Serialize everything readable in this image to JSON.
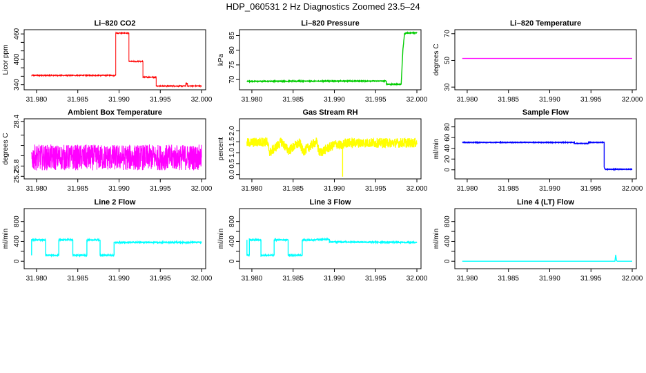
{
  "page": {
    "title": "HDP_060531  2 Hz Diagnostics Zoomed 23.5–24"
  },
  "chart_data": [
    {
      "type": "line",
      "title": "Li–820 CO2",
      "ylabel": "Licor ppm",
      "color": "#ff0000",
      "xlim": [
        31.9785,
        32.0005
      ],
      "ylim": [
        328,
        470
      ],
      "xticks": [
        31.98,
        31.985,
        31.99,
        31.995,
        32.0
      ],
      "xticklabels": [
        "31.980",
        "31.985",
        "31.990",
        "31.995",
        "32.000"
      ],
      "yticks": [
        340,
        360,
        380,
        400,
        420,
        440,
        460
      ],
      "yticklabels": [
        "340",
        "",
        "",
        "400",
        "",
        "",
        "460"
      ],
      "noise": 1.2,
      "series": [
        {
          "name": "CO2",
          "x": [
            31.9794,
            31.9896,
            31.9896,
            31.9912,
            31.9912,
            31.9929,
            31.9929,
            31.9945,
            31.9945,
            31.9981,
            31.9981,
            31.9983,
            31.9983,
            32.0
          ],
          "values": [
            362,
            362,
            462,
            462,
            395,
            395,
            358,
            358,
            337,
            337,
            343,
            343,
            337,
            337
          ]
        }
      ]
    },
    {
      "type": "line",
      "title": "Li–820 Pressure",
      "ylabel": "kPa",
      "color": "#00cc00",
      "xlim": [
        31.9785,
        32.0005
      ],
      "ylim": [
        66.5,
        87
      ],
      "xticks": [
        31.98,
        31.985,
        31.99,
        31.995,
        32.0
      ],
      "xticklabels": [
        "31.980",
        "31.985",
        "31.990",
        "31.995",
        "32.000"
      ],
      "yticks": [
        70,
        75,
        80,
        85
      ],
      "yticklabels": [
        "70",
        "75",
        "80",
        "85"
      ],
      "noise": 0.12,
      "series": [
        {
          "name": "Pressure",
          "x": [
            31.9794,
            31.9963,
            31.9963,
            31.9981,
            31.9983,
            31.9985,
            31.9987,
            32.0
          ],
          "values": [
            69.4,
            69.5,
            68.4,
            68.4,
            80,
            85.6,
            85.9,
            85.9
          ]
        }
      ]
    },
    {
      "type": "line",
      "title": "Li–820 Temperature",
      "ylabel": "degrees C",
      "color": "#ff00ff",
      "xlim": [
        31.9785,
        32.0005
      ],
      "ylim": [
        28,
        73
      ],
      "xticks": [
        31.98,
        31.985,
        31.99,
        31.995,
        32.0
      ],
      "xticklabels": [
        "31.980",
        "31.985",
        "31.990",
        "31.995",
        "32.000"
      ],
      "yticks": [
        30,
        50,
        70
      ],
      "yticklabels": [
        "30",
        "50",
        "70"
      ],
      "noise": 0,
      "series": [
        {
          "name": "Temperature",
          "x": [
            31.9794,
            32.0
          ],
          "values": [
            51.5,
            51.5
          ]
        }
      ]
    },
    {
      "type": "line",
      "title": "Ambient Box Temperature",
      "ylabel": "degrees C",
      "color": "#ff00ff",
      "xlim": [
        31.9785,
        32.0005
      ],
      "ylim": [
        25.05,
        28.55
      ],
      "xticks": [
        31.98,
        31.985,
        31.99,
        31.995,
        32.0
      ],
      "xticklabels": [
        "31.980",
        "31.985",
        "31.990",
        "31.995",
        "32.000"
      ],
      "yticks": [
        25.2,
        25.8,
        26.4,
        27.0,
        27.6,
        28.4
      ],
      "yticklabels": [
        "25.2",
        "25.8",
        "",
        "",
        "",
        "28.4"
      ],
      "noise": 0.75,
      "series": [
        {
          "name": "Box Temperature",
          "x": [
            31.9794,
            32.0
          ],
          "values": [
            26.3,
            26.3
          ]
        }
      ]
    },
    {
      "type": "line",
      "title": "Gas Stream RH",
      "ylabel": "percent",
      "color": "#ffff00",
      "xlim": [
        31.9785,
        32.0005
      ],
      "ylim": [
        -0.2,
        2.55
      ],
      "xticks": [
        31.98,
        31.985,
        31.99,
        31.995,
        32.0
      ],
      "xticklabels": [
        "31.980",
        "31.985",
        "31.990",
        "31.995",
        "32.000"
      ],
      "yticks": [
        0.0,
        0.5,
        1.0,
        1.5,
        2.0
      ],
      "yticklabels": [
        "0.0",
        "0.5",
        "1.0",
        "1.5",
        "2.0"
      ],
      "noise": 0.22,
      "series": [
        {
          "name": "RH",
          "x": [
            31.9794,
            31.9818,
            31.9822,
            31.9836,
            31.9844,
            31.9858,
            31.9862,
            31.9878,
            31.9882,
            31.9902,
            31.991,
            31.991,
            31.991,
            31.9912,
            32.0
          ],
          "values": [
            1.45,
            1.5,
            1.0,
            1.5,
            1.1,
            1.45,
            1.05,
            1.5,
            1.0,
            1.4,
            1.3,
            -0.1,
            1.3,
            1.45,
            1.45
          ]
        }
      ]
    },
    {
      "type": "line",
      "title": "Sample Flow",
      "ylabel": "ml/min",
      "color": "#0000ff",
      "xlim": [
        31.9785,
        32.0005
      ],
      "ylim": [
        -17,
        95
      ],
      "xticks": [
        31.98,
        31.985,
        31.99,
        31.995,
        32.0
      ],
      "xticklabels": [
        "31.980",
        "31.985",
        "31.990",
        "31.995",
        "32.000"
      ],
      "yticks": [
        0,
        20,
        40,
        60,
        80
      ],
      "yticklabels": [
        "0",
        "20",
        "40",
        "60",
        "80"
      ],
      "noise": 0.5,
      "series": [
        {
          "name": "Sample Flow",
          "x": [
            31.9794,
            31.993,
            31.993,
            31.9947,
            31.9947,
            31.9966,
            31.9966,
            31.9967,
            32.0
          ],
          "values": [
            51,
            51,
            49,
            49,
            51,
            51,
            5,
            1,
            1
          ]
        }
      ]
    },
    {
      "type": "line",
      "title": "Line 2 Flow",
      "ylabel": "ml/min",
      "color": "#00ffff",
      "xlim": [
        31.9785,
        32.0005
      ],
      "ylim": [
        -150,
        1060
      ],
      "xticks": [
        31.98,
        31.985,
        31.99,
        31.995,
        32.0
      ],
      "xticklabels": [
        "31.980",
        "31.985",
        "31.990",
        "31.995",
        "32.000"
      ],
      "yticks": [
        0,
        200,
        400,
        600,
        800
      ],
      "yticklabels": [
        "0",
        "",
        "400",
        "",
        "800"
      ],
      "noise": 10,
      "series": [
        {
          "name": "Line 2",
          "x": [
            31.9794,
            31.9794,
            31.9811,
            31.9811,
            31.9827,
            31.9827,
            31.9844,
            31.9844,
            31.9861,
            31.9861,
            31.9877,
            31.9877,
            31.9894,
            31.9894,
            32.0
          ],
          "values": [
            120,
            430,
            430,
            120,
            120,
            430,
            430,
            120,
            120,
            430,
            430,
            120,
            120,
            380,
            380
          ]
        }
      ]
    },
    {
      "type": "line",
      "title": "Line 3 Flow",
      "ylabel": "ml/min",
      "color": "#00ffff",
      "xlim": [
        31.9785,
        32.0005
      ],
      "ylim": [
        -150,
        1060
      ],
      "xticks": [
        31.98,
        31.985,
        31.99,
        31.995,
        32.0
      ],
      "xticklabels": [
        "31.980",
        "31.985",
        "31.990",
        "31.995",
        "32.000"
      ],
      "yticks": [
        0,
        200,
        400,
        600,
        800
      ],
      "yticklabels": [
        "0",
        "",
        "400",
        "",
        "800"
      ],
      "noise": 10,
      "series": [
        {
          "name": "Line 3",
          "x": [
            31.9794,
            31.9794,
            31.9797,
            31.9797,
            31.9811,
            31.9811,
            31.9827,
            31.9827,
            31.9844,
            31.9844,
            31.9861,
            31.9861,
            31.9877,
            31.9877,
            31.9894,
            31.9894,
            32.0
          ],
          "values": [
            430,
            120,
            120,
            430,
            430,
            120,
            120,
            430,
            430,
            120,
            120,
            430,
            430,
            440,
            440,
            390,
            380
          ]
        }
      ]
    },
    {
      "type": "line",
      "title": "Line 4 (LT) Flow",
      "ylabel": "ml/min",
      "color": "#00ffff",
      "xlim": [
        31.9785,
        32.0005
      ],
      "ylim": [
        -150,
        1060
      ],
      "xticks": [
        31.98,
        31.985,
        31.99,
        31.995,
        32.0
      ],
      "xticklabels": [
        "31.980",
        "31.985",
        "31.990",
        "31.995",
        "32.000"
      ],
      "yticks": [
        0,
        200,
        400,
        600,
        800
      ],
      "yticklabels": [
        "0",
        "",
        "400",
        "",
        "800"
      ],
      "noise": 0,
      "series": [
        {
          "name": "Line 4",
          "x": [
            31.9794,
            31.9979,
            31.998,
            31.9981,
            31.9982,
            32.0
          ],
          "values": [
            0,
            0,
            130,
            10,
            0,
            0
          ]
        }
      ]
    }
  ]
}
